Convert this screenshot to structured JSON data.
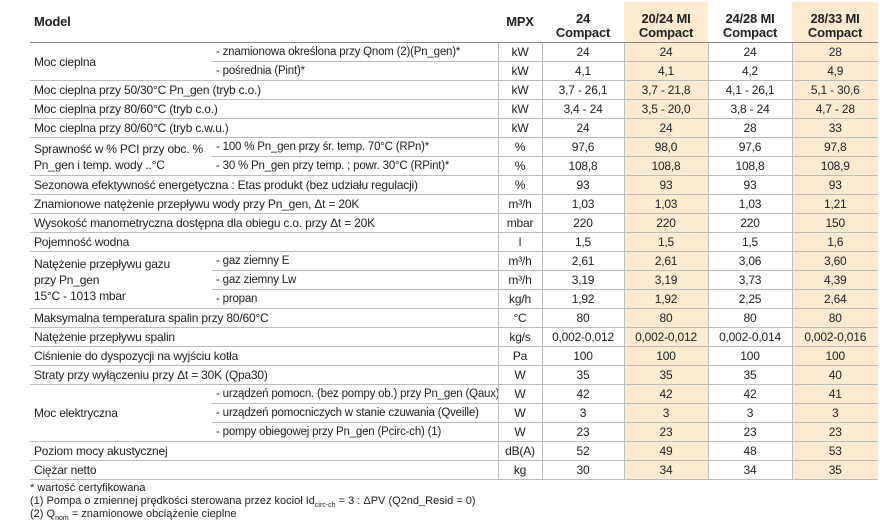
{
  "header": {
    "model": "Model",
    "unit_heading": "MPX",
    "columns": [
      [
        "24",
        "Compact"
      ],
      [
        "20/24 MI",
        "Compact"
      ],
      [
        "24/28 MI",
        "Compact"
      ],
      [
        "28/33 MI",
        "Compact"
      ]
    ]
  },
  "rows": [
    {
      "group": [
        "Moc cieplna"
      ],
      "items": [
        {
          "label": "- znamionowa określona przy Qnom (2)(Pn_gen)*",
          "unit": "kW",
          "values": [
            "24",
            "24",
            "24",
            "28"
          ]
        },
        {
          "label": "- pośrednia (Pint)*",
          "unit": "kW",
          "values": [
            "4,1",
            "4,1",
            "4,2",
            "4,9"
          ]
        }
      ]
    },
    {
      "label": "Moc cieplna przy 50/30°C Pn_gen (tryb c.o.)",
      "unit": "kW",
      "values": [
        "3,7 - 26,1",
        "3,7 - 21,8",
        "4,1 - 26,1",
        "5,1 - 30,6"
      ]
    },
    {
      "label": "Moc cieplna przy 80/60°C (tryb c.o.)",
      "unit": "kW",
      "values": [
        "3,4 - 24",
        "3,5 - 20,0",
        "3,8 - 24",
        "4,7 - 28"
      ]
    },
    {
      "label": "Moc cieplna przy 80/60°C (tryb c.w.u.)",
      "unit": "kW",
      "values": [
        "24",
        "24",
        "28",
        "33"
      ]
    },
    {
      "group": [
        "Sprawność w % PCI przy obc. %",
        "Pn_gen i temp. wody ..°C"
      ],
      "items": [
        {
          "label": "- 100 % Pn_gen przy śr. temp. 70°C (RPn)*",
          "unit": "%",
          "values": [
            "97,6",
            "98,0",
            "97,6",
            "97,8"
          ]
        },
        {
          "label": "- 30 % Pn_gen przy temp. ; powr. 30°C (RPint)*",
          "unit": "%",
          "values": [
            "108,8",
            "108,8",
            "108,8",
            "108,9"
          ]
        }
      ]
    },
    {
      "label": "Sezonowa efektywność energetyczna : Etas produkt (bez udziału regulacji)",
      "unit": "%",
      "values": [
        "93",
        "93",
        "93",
        "93"
      ]
    },
    {
      "label": "Znamionowe natężenie przepływu wody przy Pn_gen, Δt = 20K",
      "unit": "m³/h",
      "values": [
        "1,03",
        "1,03",
        "1,03",
        "1,21"
      ]
    },
    {
      "label": "Wysokość manometryczna dostępna dla obiegu c.o. przy Δt = 20K",
      "unit": "mbar",
      "values": [
        "220",
        "220",
        "220",
        "150"
      ]
    },
    {
      "label": "Pojemność wodna",
      "unit": "l",
      "values": [
        "1,5",
        "1,5",
        "1,5",
        "1,6"
      ]
    },
    {
      "group": [
        "Natężenie przepływu gazu",
        "przy Pn_gen",
        "15°C - 1013 mbar"
      ],
      "items": [
        {
          "label": "- gaz ziemny E",
          "unit": "m³/h",
          "values": [
            "2,61",
            "2,61",
            "3,06",
            "3,60"
          ]
        },
        {
          "label": "- gaz ziemny Lw",
          "unit": "m³/h",
          "values": [
            "3,19",
            "3,19",
            "3,73",
            "4,39"
          ]
        },
        {
          "label": "- propan",
          "unit": "kg/h",
          "values": [
            "1,92",
            "1,92",
            "2,25",
            "2,64"
          ]
        }
      ]
    },
    {
      "label": "Maksymalna temperatura spalin przy 80/60°C",
      "unit": "°C",
      "values": [
        "80",
        "80",
        "80",
        "80"
      ]
    },
    {
      "label": "Natężenie przepływu spalin",
      "unit": "kg/s",
      "values": [
        "0,002-0,012",
        "0,002-0,012",
        "0,002-0,014",
        "0,002-0,016"
      ]
    },
    {
      "label": "Ciśnienie do dyspozycji na wyjściu kotła",
      "unit": "Pa",
      "values": [
        "100",
        "100",
        "100",
        "100"
      ]
    },
    {
      "label": "Straty przy wyłączeniu przy Δt = 30K (Qpa30)",
      "unit": "W",
      "values": [
        "35",
        "35",
        "35",
        "40"
      ]
    },
    {
      "group": [
        "Moc elektryczna"
      ],
      "items": [
        {
          "label": "- urządzeń pomocn. (bez pompy ob.) przy Pn_gen (Qaux)",
          "unit": "W",
          "values": [
            "42",
            "42",
            "42",
            "41"
          ]
        },
        {
          "label": "- urządzeń pomocniczych w stanie czuwania (Qveille)",
          "unit": "W",
          "values": [
            "3",
            "3",
            "3",
            "3"
          ]
        },
        {
          "label": "- pompy obiegowej przy Pn_gen (Pcirc-ch) (1)",
          "unit": "W",
          "values": [
            "23",
            "23",
            "23",
            "23"
          ]
        }
      ]
    },
    {
      "label": "Poziom mocy akustycznej",
      "unit": "dB(A)",
      "values": [
        "52",
        "49",
        "48",
        "53"
      ]
    },
    {
      "label": "Ciężar netto",
      "unit": "kg",
      "values": [
        "30",
        "34",
        "34",
        "35"
      ]
    }
  ],
  "footnotes": [
    {
      "text": "* wartość certyfikowana"
    },
    {
      "text": "(1) Pompa o zmiennej prędkości sterowana przez kocioł Id",
      "sub": "circ-ch",
      "after": " = 3 : ΔPV (Q2nd_Resid = 0)"
    },
    {
      "text": "(2) Q",
      "sub": "nom",
      "after": " = znamionowe obciążenie cieplne"
    }
  ]
}
